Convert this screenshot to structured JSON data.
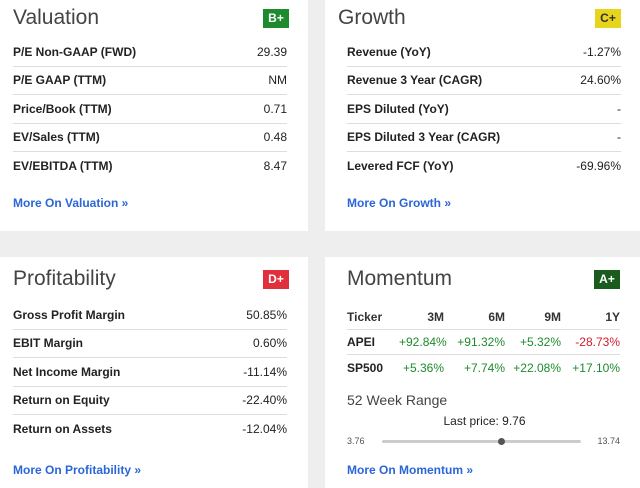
{
  "valuation": {
    "title": "Valuation",
    "grade": "B+",
    "rows": [
      {
        "label": "P/E Non-GAAP (FWD)",
        "value": "29.39"
      },
      {
        "label": "P/E GAAP (TTM)",
        "value": "NM"
      },
      {
        "label": "Price/Book (TTM)",
        "value": "0.71"
      },
      {
        "label": "EV/Sales (TTM)",
        "value": "0.48"
      },
      {
        "label": "EV/EBITDA (TTM)",
        "value": "8.47"
      }
    ],
    "more_link": "More On Valuation »"
  },
  "growth": {
    "title": "Growth",
    "grade": "C+",
    "rows": [
      {
        "label": "Revenue (YoY)",
        "value": "-1.27%"
      },
      {
        "label": "Revenue 3 Year (CAGR)",
        "value": "24.60%"
      },
      {
        "label": "EPS Diluted (YoY)",
        "value": "-"
      },
      {
        "label": "EPS Diluted 3 Year (CAGR)",
        "value": "-"
      },
      {
        "label": "Levered FCF (YoY)",
        "value": "-69.96%"
      }
    ],
    "more_link": "More On Growth »"
  },
  "profitability": {
    "title": "Profitability",
    "grade": "D+",
    "rows": [
      {
        "label": "Gross Profit Margin",
        "value": "50.85%"
      },
      {
        "label": "EBIT Margin",
        "value": "0.60%"
      },
      {
        "label": "Net Income Margin",
        "value": "-11.14%"
      },
      {
        "label": "Return on Equity",
        "value": "-22.40%"
      },
      {
        "label": "Return on Assets",
        "value": "-12.04%"
      }
    ],
    "more_link": "More On Profitability »"
  },
  "momentum": {
    "title": "Momentum",
    "grade": "A+",
    "headers": [
      "Ticker",
      "3M",
      "6M",
      "9M",
      "1Y"
    ],
    "rows": [
      {
        "ticker": "APEI",
        "m3": "+92.84%",
        "m6": "+91.32%",
        "m9": "+5.32%",
        "y1": "-28.73%"
      },
      {
        "ticker": "SP500",
        "m3": "+5.36%",
        "m6": "+7.74%",
        "m9": "+22.08%",
        "y1": "+17.10%"
      }
    ],
    "range_title": "52 Week Range",
    "last_price_label": "Last price: 9.76",
    "range_low": "3.76",
    "range_high": "13.74",
    "range_fraction": 0.6,
    "more_link": "More On Momentum »"
  },
  "colors": {
    "grade_b_plus": "#1e8a2e",
    "grade_c_plus": "#e7d41d",
    "grade_d_plus": "#e0303c",
    "grade_a_plus": "#1a5c1e",
    "link": "#2a66d8",
    "positive": "#1e8a2e",
    "negative": "#d0202c"
  }
}
